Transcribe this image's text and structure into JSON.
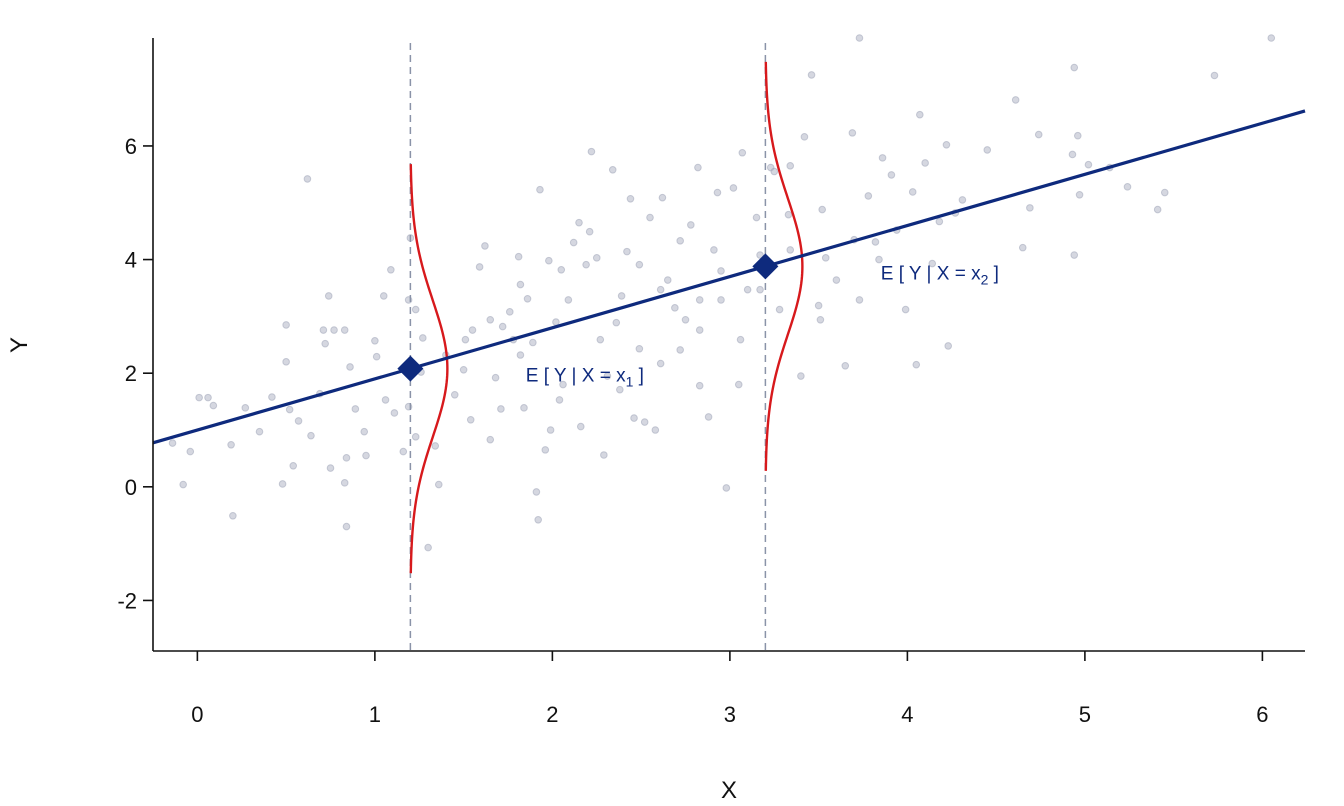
{
  "chart_data": {
    "type": "scatter",
    "title": "",
    "xlabel": "X",
    "ylabel": "Y",
    "xlim": [
      -0.25,
      6.24
    ],
    "ylim": [
      -2.89,
      7.9
    ],
    "xticks": [
      "0",
      "1",
      "2",
      "3",
      "4",
      "5",
      "6"
    ],
    "yticks": [
      "-2",
      "0",
      "2",
      "4",
      "6"
    ],
    "grid": false,
    "colors": {
      "points": "#b3b7c6",
      "regression_line": "#0e2a7d",
      "density_curve": "#d7191c",
      "guide_line": "#8a93a8",
      "marker": "#0e2a7d"
    },
    "regression_line": {
      "intercept": 1.0,
      "slope": 0.9
    },
    "conditional_points": [
      {
        "x": 1.2,
        "y": 2.08,
        "label_main": "E [ Y | X = x",
        "label_sub": "1",
        "label_end": " ]"
      },
      {
        "x": 3.2,
        "y": 3.88,
        "label_main": "E [ Y | X = x",
        "label_sub": "2",
        "label_end": " ]"
      }
    ],
    "conditional_density": {
      "sd": 1.2,
      "range_sd": 3
    },
    "points": [
      [
        -0.14,
        0.77
      ],
      [
        -0.08,
        0.04
      ],
      [
        -0.04,
        0.62
      ],
      [
        0.01,
        1.57
      ],
      [
        0.06,
        1.57
      ],
      [
        0.09,
        1.43
      ],
      [
        0.19,
        0.74
      ],
      [
        0.2,
        -0.51
      ],
      [
        0.27,
        1.39
      ],
      [
        0.35,
        0.97
      ],
      [
        0.42,
        1.58
      ],
      [
        0.48,
        0.05
      ],
      [
        0.5,
        2.85
      ],
      [
        0.5,
        2.2
      ],
      [
        0.52,
        1.36
      ],
      [
        0.54,
        0.37
      ],
      [
        0.57,
        1.16
      ],
      [
        0.62,
        5.42
      ],
      [
        0.64,
        0.9
      ],
      [
        0.69,
        1.64
      ],
      [
        0.71,
        2.76
      ],
      [
        0.72,
        2.52
      ],
      [
        0.74,
        3.36
      ],
      [
        0.75,
        0.33
      ],
      [
        0.77,
        2.76
      ],
      [
        0.83,
        2.76
      ],
      [
        0.83,
        0.07
      ],
      [
        0.84,
        -0.7
      ],
      [
        0.84,
        0.51
      ],
      [
        0.86,
        2.11
      ],
      [
        0.89,
        1.37
      ],
      [
        0.94,
        0.97
      ],
      [
        0.95,
        0.55
      ],
      [
        1.0,
        2.57
      ],
      [
        1.01,
        2.29
      ],
      [
        1.05,
        3.36
      ],
      [
        1.06,
        1.53
      ],
      [
        1.09,
        3.82
      ],
      [
        1.11,
        1.3
      ],
      [
        1.16,
        0.62
      ],
      [
        1.19,
        1.41
      ],
      [
        1.19,
        3.29
      ],
      [
        1.2,
        4.38
      ],
      [
        1.23,
        3.12
      ],
      [
        1.23,
        0.88
      ],
      [
        1.26,
        2.02
      ],
      [
        1.27,
        2.62
      ],
      [
        1.3,
        -1.07
      ],
      [
        1.34,
        0.72
      ],
      [
        1.36,
        0.04
      ],
      [
        1.4,
        2.32
      ],
      [
        1.45,
        1.62
      ],
      [
        1.5,
        2.06
      ],
      [
        1.51,
        2.59
      ],
      [
        1.55,
        2.76
      ],
      [
        1.59,
        3.87
      ],
      [
        1.62,
        4.24
      ],
      [
        1.65,
        2.94
      ],
      [
        1.68,
        1.92
      ],
      [
        1.71,
        1.37
      ],
      [
        1.72,
        2.82
      ],
      [
        1.76,
        3.08
      ],
      [
        1.78,
        2.59
      ],
      [
        1.81,
        4.05
      ],
      [
        1.82,
        3.56
      ],
      [
        1.84,
        1.39
      ],
      [
        1.86,
        3.31
      ],
      [
        1.89,
        2.54
      ],
      [
        1.91,
        -0.09
      ],
      [
        1.92,
        -0.58
      ],
      [
        1.93,
        5.23
      ],
      [
        1.96,
        0.65
      ],
      [
        1.98,
        3.98
      ],
      [
        1.99,
        1.0
      ],
      [
        2.02,
        2.9
      ],
      [
        2.06,
        1.8
      ],
      [
        2.09,
        3.29
      ],
      [
        2.12,
        4.3
      ],
      [
        2.15,
        4.65
      ],
      [
        2.16,
        1.06
      ],
      [
        2.19,
        3.91
      ],
      [
        2.22,
        5.9
      ],
      [
        2.25,
        4.03
      ],
      [
        2.29,
        0.56
      ],
      [
        2.31,
        1.95
      ],
      [
        2.34,
        5.58
      ],
      [
        2.36,
        2.89
      ],
      [
        2.39,
        3.36
      ],
      [
        2.42,
        4.14
      ],
      [
        2.44,
        5.07
      ],
      [
        2.46,
        1.21
      ],
      [
        2.49,
        2.43
      ],
      [
        2.52,
        1.14
      ],
      [
        2.55,
        4.74
      ],
      [
        2.58,
        1.0
      ],
      [
        2.61,
        2.17
      ],
      [
        2.62,
        5.09
      ],
      [
        2.65,
        3.64
      ],
      [
        2.69,
        3.15
      ],
      [
        2.72,
        4.33
      ],
      [
        2.75,
        2.94
      ],
      [
        2.78,
        4.61
      ],
      [
        2.82,
        5.62
      ],
      [
        2.83,
        1.78
      ],
      [
        2.88,
        1.23
      ],
      [
        2.91,
        4.17
      ],
      [
        2.93,
        5.18
      ],
      [
        2.95,
        3.8
      ],
      [
        2.98,
        -0.02
      ],
      [
        3.02,
        5.26
      ],
      [
        3.05,
        1.8
      ],
      [
        3.07,
        5.88
      ],
      [
        3.1,
        3.47
      ],
      [
        3.15,
        4.74
      ],
      [
        3.17,
        4.08
      ],
      [
        3.23,
        5.62
      ],
      [
        3.25,
        5.55
      ],
      [
        3.28,
        3.12
      ],
      [
        3.33,
        4.79
      ],
      [
        3.34,
        5.65
      ],
      [
        3.4,
        1.95
      ],
      [
        3.42,
        6.16
      ],
      [
        3.46,
        7.25
      ],
      [
        3.5,
        3.19
      ],
      [
        3.52,
        4.88
      ],
      [
        3.54,
        4.03
      ],
      [
        3.6,
        3.64
      ],
      [
        3.65,
        2.13
      ],
      [
        3.69,
        6.23
      ],
      [
        3.7,
        4.35
      ],
      [
        3.73,
        7.9
      ],
      [
        3.78,
        5.12
      ],
      [
        3.82,
        4.31
      ],
      [
        3.86,
        5.79
      ],
      [
        3.91,
        5.49
      ],
      [
        3.94,
        4.52
      ],
      [
        3.99,
        3.12
      ],
      [
        4.03,
        5.19
      ],
      [
        4.05,
        2.15
      ],
      [
        4.07,
        6.55
      ],
      [
        4.1,
        5.7
      ],
      [
        4.14,
        3.93
      ],
      [
        4.18,
        4.67
      ],
      [
        4.22,
        6.02
      ],
      [
        4.23,
        2.48
      ],
      [
        4.27,
        4.82
      ],
      [
        4.31,
        5.05
      ],
      [
        4.45,
        5.93
      ],
      [
        4.61,
        6.81
      ],
      [
        4.65,
        4.21
      ],
      [
        4.69,
        4.91
      ],
      [
        4.74,
        6.2
      ],
      [
        4.94,
        4.08
      ],
      [
        4.93,
        5.85
      ],
      [
        4.94,
        7.38
      ],
      [
        4.96,
        6.18
      ],
      [
        4.97,
        5.14
      ],
      [
        5.02,
        5.67
      ],
      [
        5.14,
        5.62
      ],
      [
        5.24,
        5.28
      ],
      [
        5.41,
        4.88
      ],
      [
        5.45,
        5.18
      ],
      [
        5.73,
        7.24
      ],
      [
        6.05,
        7.9
      ],
      [
        2.05,
        3.82
      ],
      [
        2.21,
        4.49
      ],
      [
        2.49,
        3.91
      ],
      [
        2.83,
        3.29
      ],
      [
        1.82,
        2.32
      ],
      [
        2.27,
        2.59
      ],
      [
        2.61,
        3.47
      ],
      [
        2.83,
        2.76
      ],
      [
        2.38,
        1.71
      ],
      [
        2.04,
        1.53
      ],
      [
        3.17,
        3.47
      ],
      [
        3.34,
        4.17
      ],
      [
        3.06,
        2.59
      ],
      [
        3.51,
        2.94
      ],
      [
        3.73,
        3.29
      ],
      [
        3.84,
        4.0
      ],
      [
        1.54,
        1.18
      ],
      [
        1.65,
        0.83
      ],
      [
        2.72,
        2.41
      ],
      [
        2.95,
        3.29
      ]
    ]
  }
}
